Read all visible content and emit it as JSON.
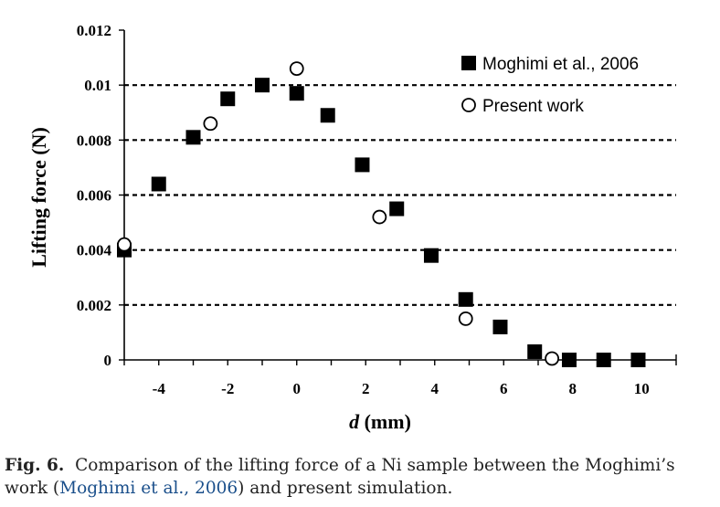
{
  "chart_data": {
    "type": "scatter",
    "xlabel_italic": "d",
    "xlabel_unit": " (mm)",
    "ylabel": "Lifting force (N)",
    "xlim": [
      -5,
      11
    ],
    "ylim": [
      0,
      0.012
    ],
    "x_ticks": [
      -4,
      -2,
      0,
      2,
      4,
      6,
      8,
      10
    ],
    "x_tick_labels": [
      "-4",
      "-2",
      "0",
      "2",
      "4",
      "6",
      "8",
      "10"
    ],
    "y_ticks": [
      0,
      0.002,
      0.004,
      0.006,
      0.008,
      0.01,
      0.012
    ],
    "y_tick_labels": [
      "0",
      "0.002",
      "0.004",
      "0.006",
      "0.008",
      "0.01",
      "0.012"
    ],
    "grid": "dashed horizontal",
    "legend_position": "top-right",
    "series": [
      {
        "name": "Moghimi et al., 2006",
        "marker": "filled-square",
        "x": [
          -5,
          -4,
          -3,
          -2,
          -1,
          0,
          0.9,
          1.9,
          2.9,
          3.9,
          4.9,
          5.9,
          6.9,
          7.9,
          8.9,
          9.9
        ],
        "y": [
          0.004,
          0.0064,
          0.0081,
          0.0095,
          0.01,
          0.0097,
          0.0089,
          0.0071,
          0.0055,
          0.0038,
          0.0022,
          0.0012,
          0.0003,
          0.0,
          0.0,
          0.0
        ]
      },
      {
        "name": "Present work",
        "marker": "open-circle",
        "x": [
          -5,
          -2.5,
          0,
          2.4,
          4.9,
          7.4
        ],
        "y": [
          0.0042,
          0.0086,
          0.0106,
          0.0052,
          0.0015,
          5e-05
        ]
      }
    ]
  },
  "caption": {
    "label": "Fig. 6.",
    "text_before": "Comparison of the lifting force of a Ni sample between the Moghimi’s work (",
    "citation": "Moghimi et al., 2006",
    "text_after": ") and present simulation."
  },
  "colors": {
    "marks": "#000000",
    "citation": "#1a4f8b"
  }
}
